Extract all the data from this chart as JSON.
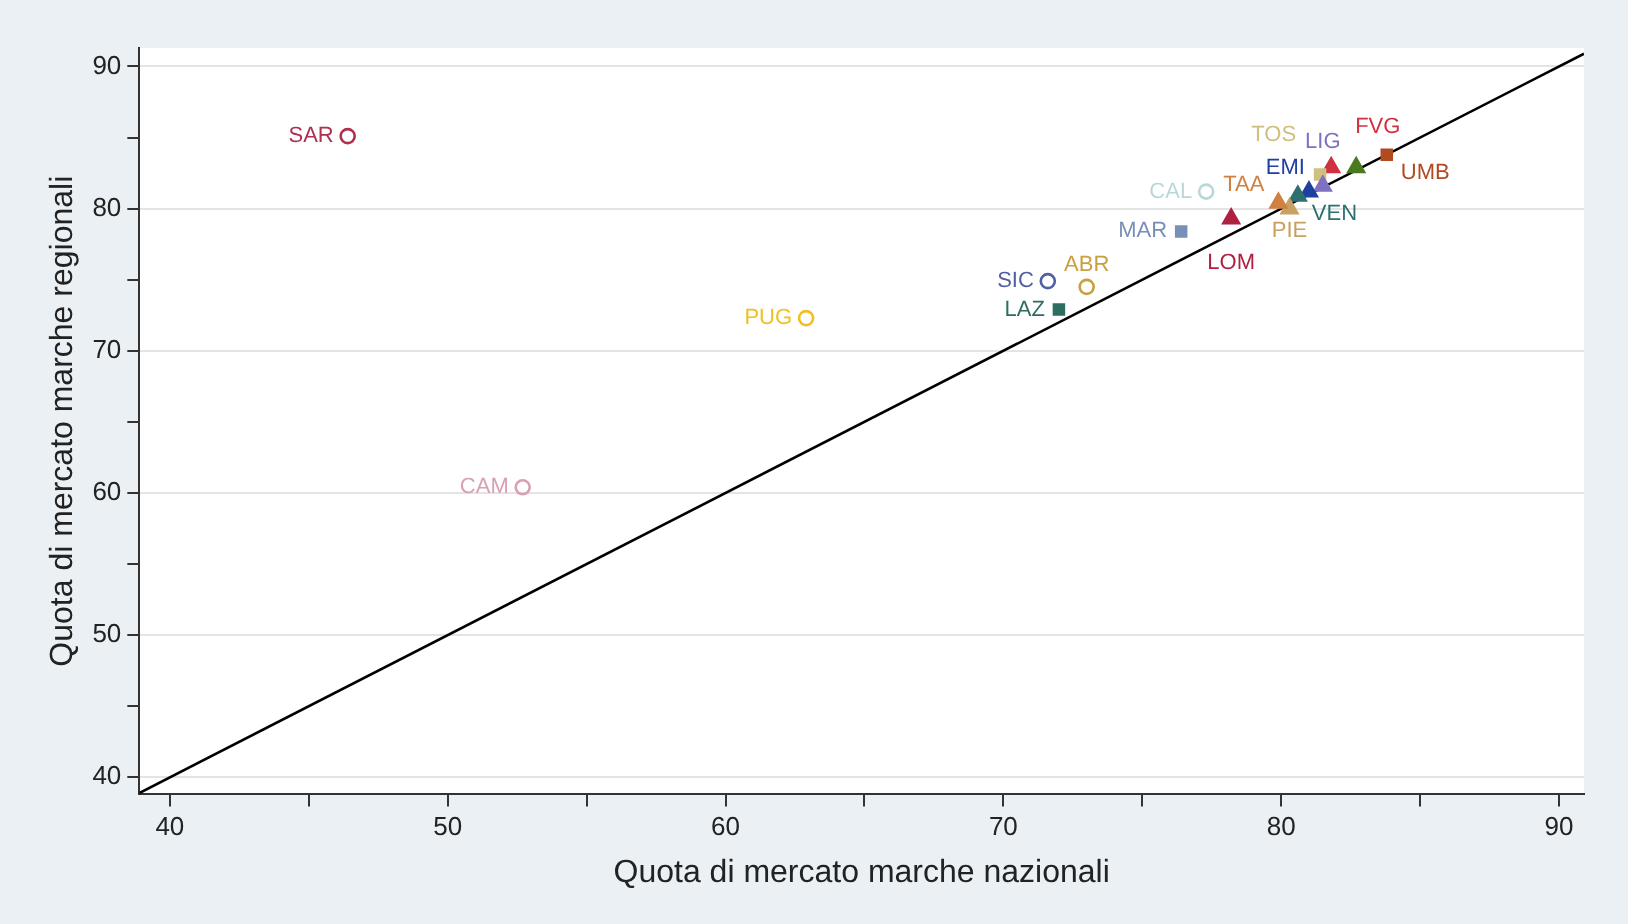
{
  "chart_data": {
    "type": "scatter",
    "xlabel": "Quota di mercato marche nazionali",
    "ylabel": "Quota di mercato marche regionali",
    "xlim": [
      38.9,
      90.9
    ],
    "ylim": [
      38.8,
      91.3
    ],
    "xticks": [
      40,
      {
        "value": 45,
        "label": null
      },
      50,
      {
        "value": 55,
        "label": null
      },
      60,
      {
        "value": 65,
        "label": null
      },
      70,
      {
        "value": 75,
        "label": null
      },
      80,
      {
        "value": 85,
        "label": null
      },
      90
    ],
    "yticks": [
      40,
      {
        "value": 45,
        "label": null
      },
      50,
      {
        "value": 55,
        "label": null
      },
      60,
      {
        "value": 65,
        "label": null
      },
      70,
      {
        "value": 75,
        "label": null
      },
      80,
      {
        "value": 85,
        "label": null
      },
      90
    ],
    "grid": "y",
    "legend": false,
    "series": [
      {
        "name": "SAR",
        "color": "#b03050",
        "marker": "circle",
        "x": [
          46.4
        ],
        "values": [
          85.1
        ]
      },
      {
        "name": "CAM",
        "color": "#d8a0b0",
        "marker": "circle",
        "x": [
          52.7
        ],
        "values": [
          60.4
        ]
      },
      {
        "name": "PUG",
        "color": "#f0c020",
        "marker": "circle",
        "x": [
          62.9
        ],
        "values": [
          72.3
        ]
      },
      {
        "name": "SIC",
        "color": "#5060a0",
        "marker": "circle",
        "x": [
          71.6
        ],
        "values": [
          74.9
        ]
      },
      {
        "name": "ABR",
        "color": "#c8a040",
        "marker": "circle",
        "x": [
          73.0
        ],
        "values": [
          74.5
        ]
      },
      {
        "name": "LAZ",
        "color": "#2e6e60",
        "marker": "square",
        "x": [
          72.0
        ],
        "values": [
          72.9
        ]
      },
      {
        "name": "MAR",
        "color": "#7890b8",
        "marker": "square",
        "x": [
          76.4
        ],
        "values": [
          78.4
        ]
      },
      {
        "name": "CAL",
        "color": "#b8d8d8",
        "marker": "circle",
        "x": [
          77.3
        ],
        "values": [
          81.2
        ]
      },
      {
        "name": "LOM",
        "color": "#b02040",
        "marker": "triangle",
        "x": [
          78.2
        ],
        "values": [
          79.3
        ]
      },
      {
        "name": "TAA",
        "color": "#d08040",
        "marker": "triangle",
        "x": [
          79.9
        ],
        "values": [
          80.4
        ]
      },
      {
        "name": "PIE",
        "color": "#c8a060",
        "marker": "triangle",
        "x": [
          80.3
        ],
        "values": [
          80.0
        ]
      },
      {
        "name": "VEN",
        "color": "#2e7070",
        "marker": "triangle",
        "x": [
          80.6
        ],
        "values": [
          80.9
        ]
      },
      {
        "name": "EMI",
        "color": "#2040a0",
        "marker": "triangle",
        "x": [
          81.0
        ],
        "values": [
          81.2
        ]
      },
      {
        "name": "LIG",
        "color": "#8070c0",
        "marker": "triangle",
        "x": [
          81.5
        ],
        "values": [
          81.6
        ]
      },
      {
        "name": "TOS",
        "color": "#d0c080",
        "marker": "square",
        "x": [
          81.4
        ],
        "values": [
          82.4
        ]
      },
      {
        "name": "FVG",
        "color": "#d03040",
        "marker": "triangle",
        "x": [
          81.8
        ],
        "values": [
          82.9
        ]
      },
      {
        "color": "#4a7a20",
        "marker": "triangle",
        "x": [
          82.7
        ],
        "values": [
          82.9
        ]
      },
      {
        "name": "UMB",
        "color": "#b04a20",
        "marker": "square",
        "x": [
          83.8
        ],
        "values": [
          83.8
        ]
      },
      {
        "type": "line",
        "color": "#000000",
        "marker": "none",
        "line_style": "solid",
        "x": [
          38.9,
          90.9
        ],
        "values": [
          38.9,
          90.9
        ]
      }
    ]
  }
}
